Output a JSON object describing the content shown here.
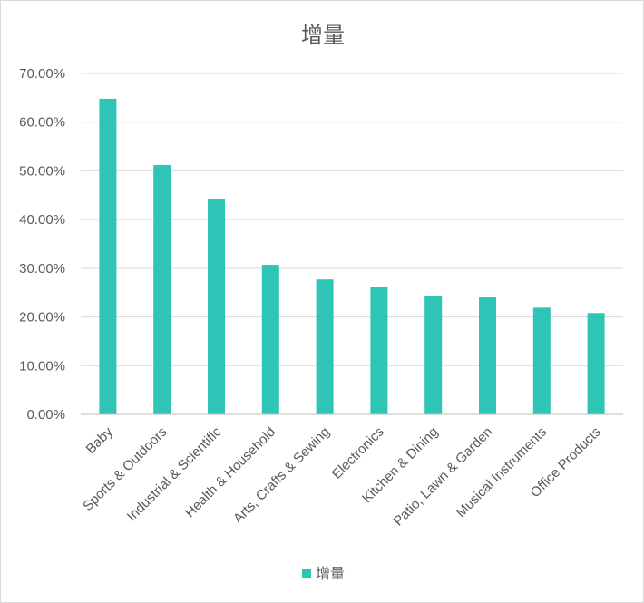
{
  "chart_data": {
    "type": "bar",
    "title": "增量",
    "categories": [
      "Baby",
      "Sports & Outdoors",
      "Industrial & Scientific",
      "Health & Household",
      "Arts, Crafts & Sewing",
      "Electronics",
      "Kitchen & Dining",
      "Patio, Lawn & Garden",
      "Musical Instruments",
      "Office Products"
    ],
    "series": [
      {
        "name": "增量",
        "values": [
          0.648,
          0.512,
          0.443,
          0.307,
          0.277,
          0.262,
          0.244,
          0.24,
          0.219,
          0.208
        ]
      }
    ],
    "yticks": [
      "0.00%",
      "10.00%",
      "20.00%",
      "30.00%",
      "40.00%",
      "50.00%",
      "60.00%",
      "70.00%"
    ],
    "ylim": [
      0,
      0.7
    ],
    "grid": true,
    "legend_position": "bottom",
    "colors": {
      "bar": "#2ec4b6",
      "grid": "#d9d9d9",
      "text": "#595959"
    }
  }
}
